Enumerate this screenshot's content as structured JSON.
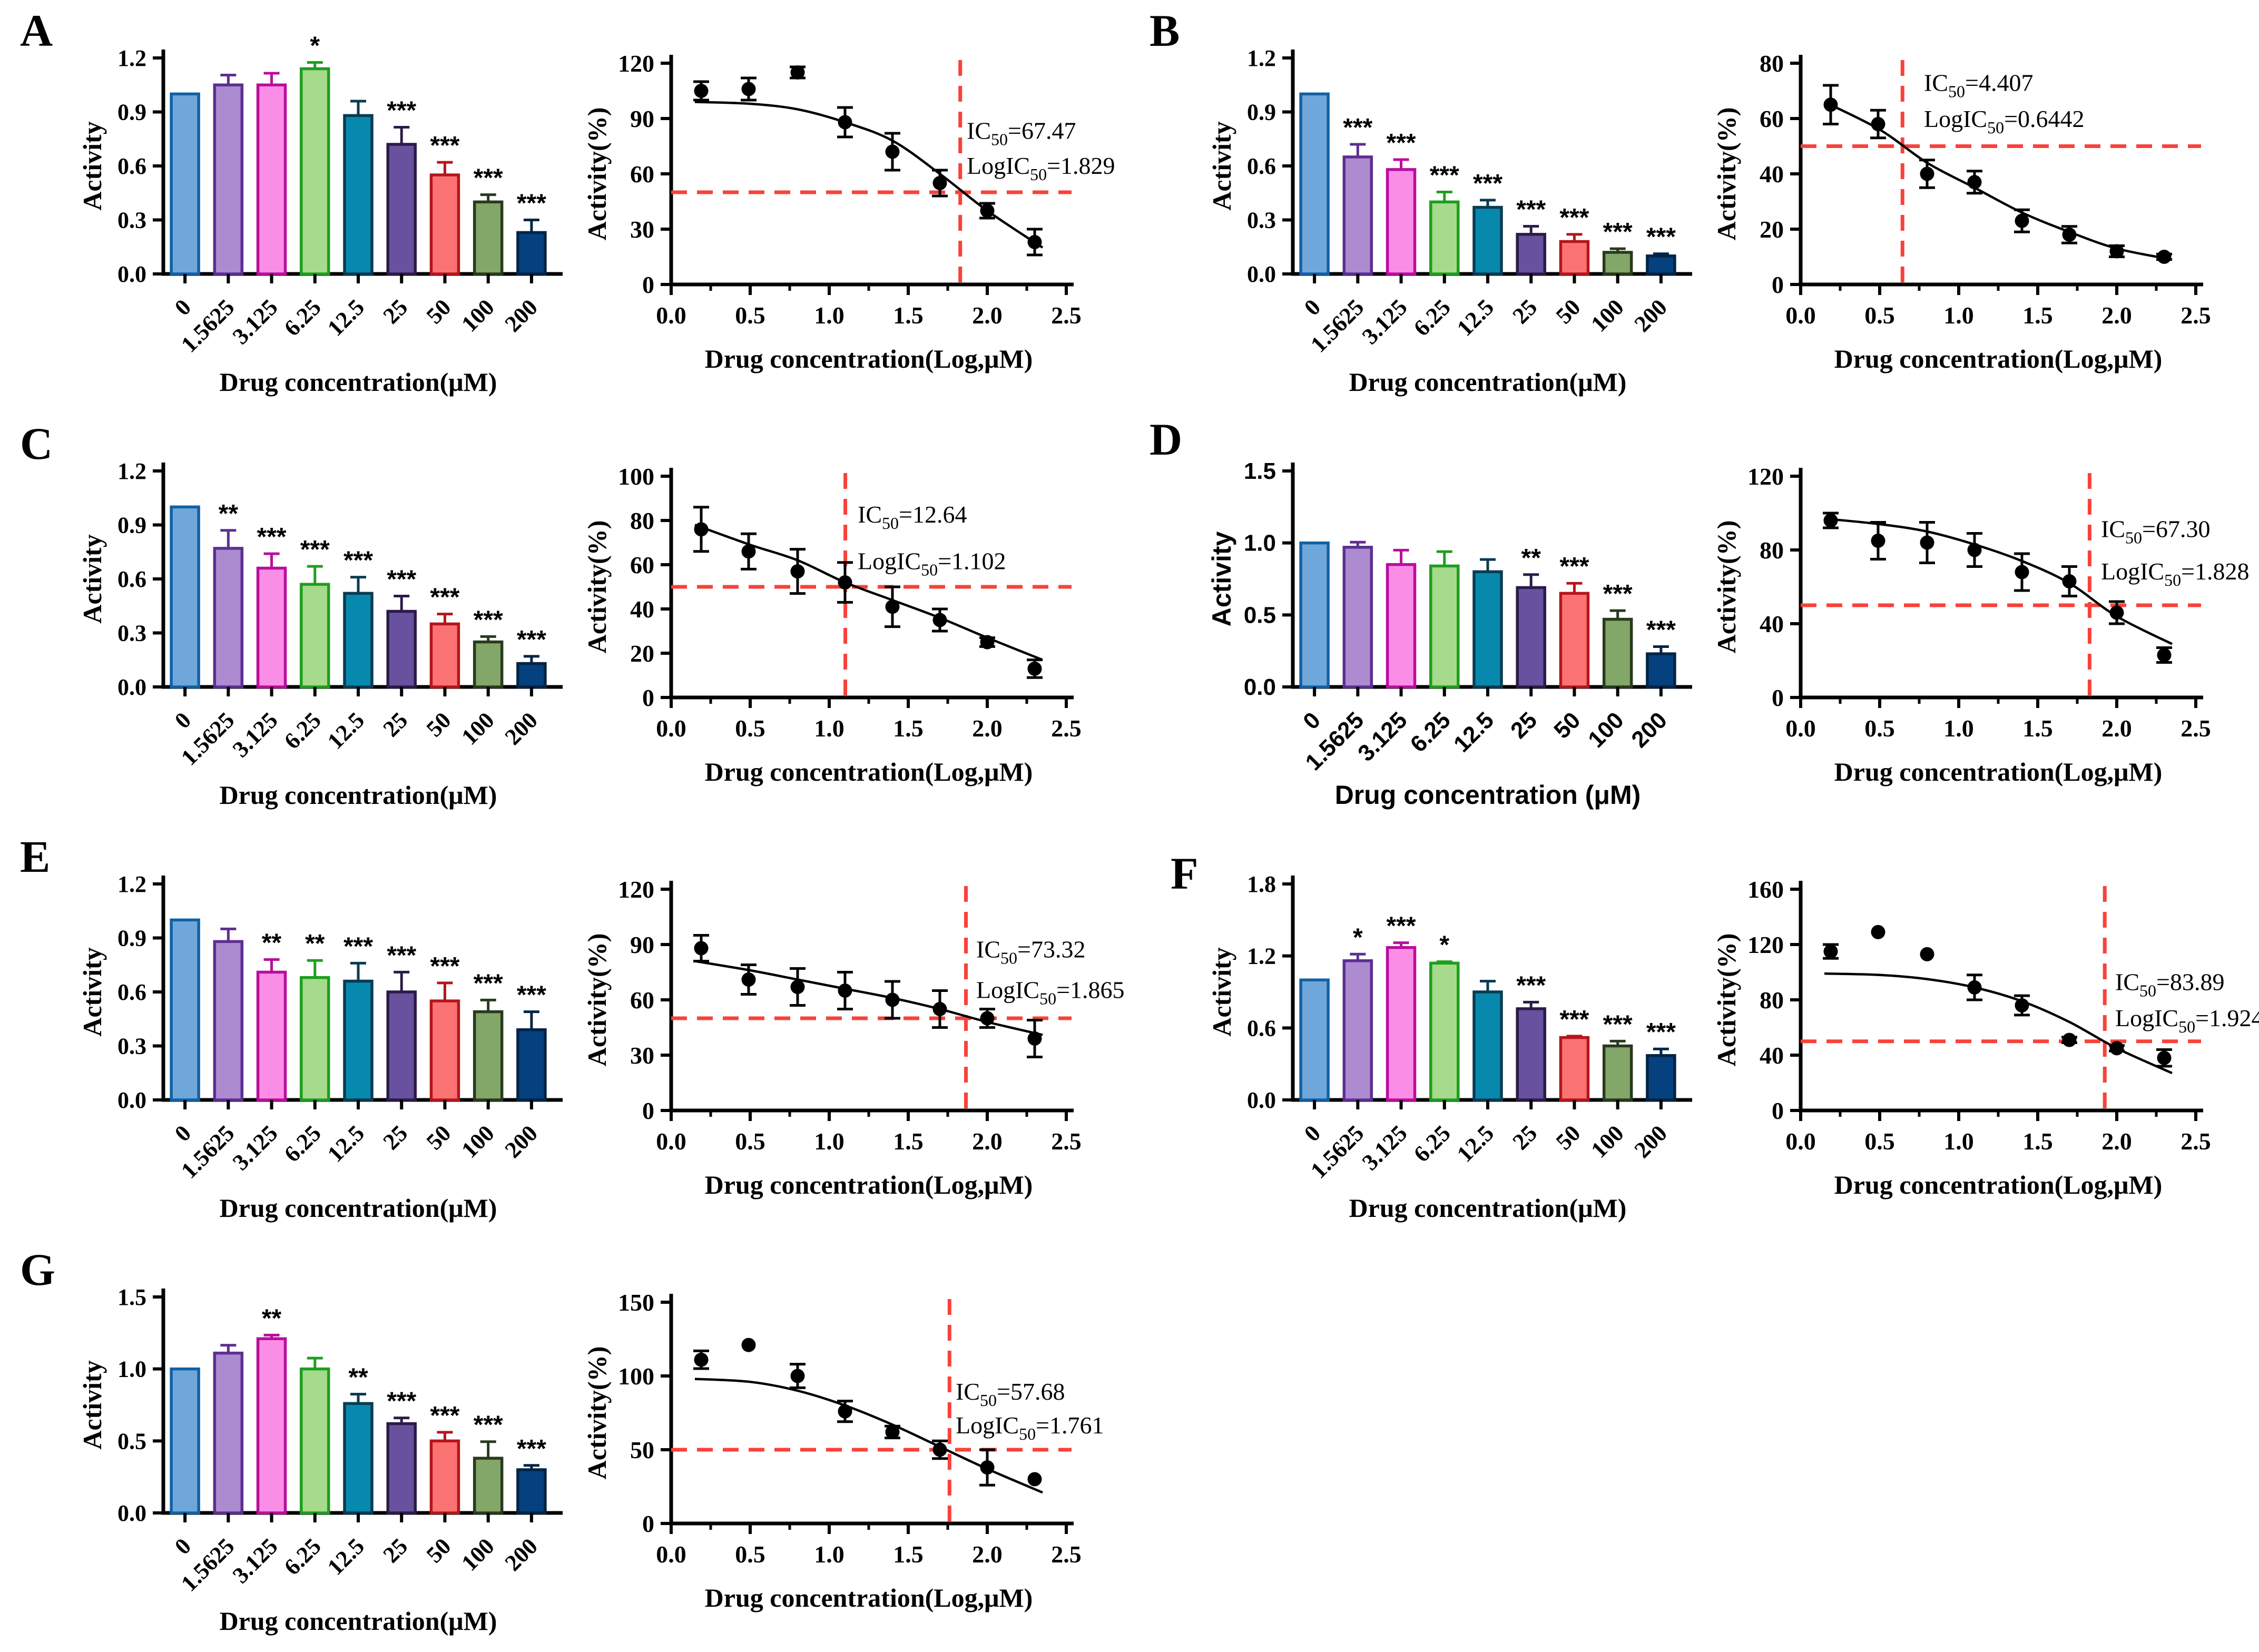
{
  "figure": {
    "panels": [
      "A",
      "B",
      "C",
      "D",
      "E",
      "F",
      "G"
    ]
  },
  "palette": {
    "bar_fills": [
      "#6FA7DA",
      "#AC8BD0",
      "#FA8EE6",
      "#A6DA8C",
      "#0689AD",
      "#68519F",
      "#FA7372",
      "#83A669",
      "#05407F"
    ],
    "bar_borders": [
      "#1261A5",
      "#5D2E92",
      "#BB0D9D",
      "#1E9E1E",
      "#0B3B53",
      "#2B1B48",
      "#B5151C",
      "#283A1E",
      "#032445"
    ],
    "dashed_red": "#F8423A",
    "data_black": "#000000"
  },
  "chart_data": [
    {
      "panel": "A",
      "type": "bar",
      "categories": [
        "0",
        "1.5625",
        "3.125",
        "6.25",
        "12.5",
        "25",
        "50",
        "100",
        "200"
      ],
      "values": [
        1.0,
        1.05,
        1.05,
        1.14,
        0.88,
        0.72,
        0.55,
        0.4,
        0.23
      ],
      "errors": [
        0,
        0.055,
        0.065,
        0.035,
        0.08,
        0.095,
        0.07,
        0.04,
        0.07
      ],
      "sig": [
        "",
        "",
        "",
        "*",
        "",
        "***",
        "***",
        "***",
        "***"
      ],
      "xlabel": "Drug concentration(μM)",
      "ylabel": "Activity",
      "ylim": [
        0,
        1.2
      ],
      "yticks": [
        "0.0",
        "0.3",
        "0.6",
        "0.9",
        "1.2"
      ],
      "label_style": "serif"
    },
    {
      "panel": "A",
      "type": "scatter",
      "x": [
        0.19,
        0.49,
        0.8,
        1.1,
        1.4,
        1.7,
        2.0,
        2.3
      ],
      "y": [
        105,
        106,
        115,
        88,
        72,
        55,
        40,
        23
      ],
      "errors": [
        5,
        6,
        3,
        8,
        10,
        7,
        4,
        7
      ],
      "fit": [
        [
          0.15,
          99
        ],
        [
          0.5,
          98
        ],
        [
          0.8,
          95
        ],
        [
          1.1,
          88
        ],
        [
          1.4,
          78
        ],
        [
          1.7,
          60
        ],
        [
          2.0,
          40
        ],
        [
          2.35,
          20
        ]
      ],
      "xlabel": "Drug concentration(Log,μM)",
      "ylabel": "Activity(%)",
      "xlim": [
        0,
        2.5
      ],
      "xticks": [
        "0.0",
        "0.5",
        "1.0",
        "1.5",
        "2.0",
        "2.5"
      ],
      "ylim": [
        0,
        120
      ],
      "yticks": [
        "0",
        "30",
        "60",
        "90",
        "120"
      ],
      "hline": 50,
      "vline": 1.829,
      "ic50": {
        "prefix": "IC",
        "sub": "50",
        "value": "=67.47"
      },
      "logic50": {
        "prefix": "LogIC",
        "sub": "50",
        "value": "=1.829"
      },
      "anno": {
        "x": 1.87,
        "y1": 79,
        "y2": 60
      }
    },
    {
      "panel": "B",
      "type": "bar",
      "categories": [
        "0",
        "1.5625",
        "3.125",
        "6.25",
        "12.5",
        "25",
        "50",
        "100",
        "200"
      ],
      "values": [
        1.0,
        0.65,
        0.58,
        0.4,
        0.37,
        0.22,
        0.18,
        0.12,
        0.1
      ],
      "errors": [
        0,
        0.07,
        0.055,
        0.055,
        0.04,
        0.045,
        0.04,
        0.02,
        0.012
      ],
      "sig": [
        "",
        "***",
        "***",
        "***",
        "***",
        "***",
        "***",
        "***",
        "***"
      ],
      "xlabel": "Drug concentration(μM)",
      "ylabel": "Activity",
      "ylim": [
        0,
        1.2
      ],
      "yticks": [
        "0.0",
        "0.3",
        "0.6",
        "0.9",
        "1.2"
      ],
      "label_style": "serif"
    },
    {
      "panel": "B",
      "type": "scatter",
      "x": [
        0.19,
        0.49,
        0.8,
        1.1,
        1.4,
        1.7,
        2.0,
        2.3
      ],
      "y": [
        65,
        58,
        40,
        37,
        23,
        18,
        12,
        10
      ],
      "errors": [
        7,
        5,
        5,
        4,
        4,
        3,
        2,
        1
      ],
      "fit": [
        [
          0.15,
          66
        ],
        [
          0.5,
          56
        ],
        [
          0.8,
          44
        ],
        [
          1.1,
          35
        ],
        [
          1.4,
          26
        ],
        [
          1.7,
          19
        ],
        [
          2.0,
          13
        ],
        [
          2.35,
          9
        ]
      ],
      "xlabel": "Drug concentration(Log,μM)",
      "ylabel": "Activity(%)",
      "xlim": [
        0,
        2.5
      ],
      "xticks": [
        "0.0",
        "0.5",
        "1.0",
        "1.5",
        "2.0",
        "2.5"
      ],
      "ylim": [
        0,
        80
      ],
      "yticks": [
        "0",
        "20",
        "40",
        "60",
        "80"
      ],
      "hline": 50,
      "vline": 0.6442,
      "ic50": {
        "prefix": "IC",
        "sub": "50",
        "value": "=4.407"
      },
      "logic50": {
        "prefix": "LogIC",
        "sub": "50",
        "value": "=0.6442"
      },
      "anno": {
        "x": 0.78,
        "y1": 70,
        "y2": 57
      }
    },
    {
      "panel": "C",
      "type": "bar",
      "categories": [
        "0",
        "1.5625",
        "3.125",
        "6.25",
        "12.5",
        "25",
        "50",
        "100",
        "200"
      ],
      "values": [
        1.0,
        0.77,
        0.66,
        0.57,
        0.52,
        0.42,
        0.35,
        0.25,
        0.13
      ],
      "errors": [
        0,
        0.1,
        0.08,
        0.1,
        0.09,
        0.085,
        0.055,
        0.03,
        0.04
      ],
      "sig": [
        "",
        "**",
        "***",
        "***",
        "***",
        "***",
        "***",
        "***",
        "***"
      ],
      "xlabel": "Drug concentration(μM)",
      "ylabel": "Activity",
      "ylim": [
        0,
        1.2
      ],
      "yticks": [
        "0.0",
        "0.3",
        "0.6",
        "0.9",
        "1.2"
      ],
      "label_style": "serif"
    },
    {
      "panel": "C",
      "type": "scatter",
      "x": [
        0.19,
        0.49,
        0.8,
        1.1,
        1.4,
        1.7,
        2.0,
        2.3
      ],
      "y": [
        76,
        66,
        57,
        52,
        41,
        35,
        25,
        13
      ],
      "errors": [
        10,
        8,
        10,
        9,
        9,
        5,
        2,
        4
      ],
      "fit": [
        [
          0.15,
          78
        ],
        [
          0.5,
          69
        ],
        [
          0.8,
          62
        ],
        [
          1.1,
          52
        ],
        [
          1.4,
          44
        ],
        [
          1.7,
          36
        ],
        [
          2.0,
          27
        ],
        [
          2.35,
          17
        ]
      ],
      "xlabel": "Drug concentration(Log,μM)",
      "ylabel": "Activity(%)",
      "xlim": [
        0,
        2.5
      ],
      "xticks": [
        "0.0",
        "0.5",
        "1.0",
        "1.5",
        "2.0",
        "2.5"
      ],
      "ylim": [
        0,
        100
      ],
      "yticks": [
        "0",
        "20",
        "40",
        "60",
        "80",
        "100"
      ],
      "hline": 50,
      "vline": 1.102,
      "ic50": {
        "prefix": "IC",
        "sub": "50",
        "value": "=12.64"
      },
      "logic50": {
        "prefix": "LogIC",
        "sub": "50",
        "value": "=1.102"
      },
      "anno": {
        "x": 1.18,
        "y1": 79,
        "y2": 58
      }
    },
    {
      "panel": "D",
      "type": "bar",
      "categories": [
        "0",
        "1.5625",
        "3.125",
        "6.25",
        "12.5",
        "25",
        "50",
        "100",
        "200"
      ],
      "values": [
        1.0,
        0.97,
        0.85,
        0.84,
        0.8,
        0.69,
        0.65,
        0.47,
        0.23
      ],
      "errors": [
        0,
        0.035,
        0.1,
        0.1,
        0.085,
        0.09,
        0.07,
        0.06,
        0.05
      ],
      "sig": [
        "",
        "",
        "",
        "",
        "",
        "**",
        "***",
        "***",
        "***"
      ],
      "xlabel": "Drug concentration (μM)",
      "ylabel": "Activity",
      "ylim": [
        0,
        1.5
      ],
      "yticks": [
        "0.0",
        "0.5",
        "1.0",
        "1.5"
      ],
      "label_style": "sans"
    },
    {
      "panel": "D",
      "type": "scatter",
      "x": [
        0.19,
        0.49,
        0.8,
        1.1,
        1.4,
        1.7,
        2.0,
        2.3
      ],
      "y": [
        96,
        85,
        84,
        80,
        68,
        63,
        46,
        23
      ],
      "errors": [
        4,
        10,
        11,
        9,
        10,
        8,
        6,
        4
      ],
      "fit": [
        [
          0.15,
          97
        ],
        [
          0.5,
          94
        ],
        [
          0.8,
          90
        ],
        [
          1.1,
          83
        ],
        [
          1.4,
          74
        ],
        [
          1.7,
          62
        ],
        [
          2.0,
          44
        ],
        [
          2.35,
          29
        ]
      ],
      "xlabel": "Drug concentration(Log,μM)",
      "ylabel": "Activity(%)",
      "xlim": [
        0,
        2.5
      ],
      "xticks": [
        "0.0",
        "0.5",
        "1.0",
        "1.5",
        "2.0",
        "2.5"
      ],
      "ylim": [
        0,
        120
      ],
      "yticks": [
        "0",
        "40",
        "80",
        "120"
      ],
      "hline": 50,
      "vline": 1.828,
      "ic50": {
        "prefix": "IC",
        "sub": "50",
        "value": "=67.30"
      },
      "logic50": {
        "prefix": "LogIC",
        "sub": "50",
        "value": "=1.828"
      },
      "anno": {
        "x": 1.9,
        "y1": 87,
        "y2": 64
      }
    },
    {
      "panel": "E",
      "type": "bar",
      "categories": [
        "0",
        "1.5625",
        "3.125",
        "6.25",
        "12.5",
        "25",
        "50",
        "100",
        "200"
      ],
      "values": [
        1.0,
        0.88,
        0.71,
        0.68,
        0.66,
        0.6,
        0.55,
        0.49,
        0.39
      ],
      "errors": [
        0,
        0.07,
        0.07,
        0.095,
        0.1,
        0.11,
        0.1,
        0.065,
        0.1
      ],
      "sig": [
        "",
        "",
        "**",
        "**",
        "***",
        "***",
        "***",
        "***",
        "***"
      ],
      "xlabel": "Drug concentration(μM)",
      "ylabel": "Activity",
      "ylim": [
        0,
        1.2
      ],
      "yticks": [
        "0.0",
        "0.3",
        "0.6",
        "0.9",
        "1.2"
      ],
      "label_style": "serif"
    },
    {
      "panel": "E",
      "type": "scatter",
      "x": [
        0.19,
        0.49,
        0.8,
        1.1,
        1.4,
        1.7,
        2.0,
        2.3
      ],
      "y": [
        88,
        71,
        67,
        65,
        60,
        55,
        50,
        39
      ],
      "errors": [
        7,
        8,
        10,
        10,
        10,
        10,
        5,
        10
      ],
      "fit": [
        [
          0.15,
          81
        ],
        [
          0.5,
          76
        ],
        [
          0.8,
          71
        ],
        [
          1.1,
          66
        ],
        [
          1.4,
          61
        ],
        [
          1.7,
          55
        ],
        [
          2.0,
          48
        ],
        [
          2.35,
          41
        ]
      ],
      "xlabel": "Drug concentration(Log,μM)",
      "ylabel": "Activity(%)",
      "xlim": [
        0,
        2.5
      ],
      "xticks": [
        "0.0",
        "0.5",
        "1.0",
        "1.5",
        "2.0",
        "2.5"
      ],
      "ylim": [
        0,
        120
      ],
      "yticks": [
        "0",
        "30",
        "60",
        "90",
        "120"
      ],
      "hline": 50,
      "vline": 1.865,
      "ic50": {
        "prefix": "IC",
        "sub": "50",
        "value": "=73.32"
      },
      "logic50": {
        "prefix": "LogIC",
        "sub": "50",
        "value": "=1.865"
      },
      "anno": {
        "x": 1.93,
        "y1": 83,
        "y2": 61
      }
    },
    {
      "panel": "F",
      "type": "bar",
      "categories": [
        "0",
        "1.5625",
        "3.125",
        "6.25",
        "12.5",
        "25",
        "50",
        "100",
        "200"
      ],
      "values": [
        1.0,
        1.16,
        1.27,
        1.14,
        0.9,
        0.76,
        0.52,
        0.45,
        0.37
      ],
      "errors": [
        0,
        0.055,
        0.04,
        0.012,
        0.09,
        0.055,
        0.012,
        0.04,
        0.055
      ],
      "sig": [
        "",
        "*",
        "***",
        "*",
        "",
        "***",
        "***",
        "***",
        "***"
      ],
      "xlabel": "Drug concentration(μM)",
      "ylabel": "Activity",
      "ylim": [
        0,
        1.8
      ],
      "yticks": [
        "0.0",
        "0.6",
        "1.2",
        "1.8"
      ],
      "label_style": "serif"
    },
    {
      "panel": "F",
      "type": "scatter",
      "x": [
        0.19,
        0.49,
        0.8,
        1.1,
        1.4,
        1.7,
        2.0,
        2.3
      ],
      "y": [
        115,
        129,
        113,
        89,
        76,
        51,
        45,
        38
      ],
      "errors": [
        5,
        0,
        0,
        9,
        7,
        2,
        2,
        6
      ],
      "fit": [
        [
          0.15,
          99
        ],
        [
          0.5,
          98
        ],
        [
          0.8,
          95
        ],
        [
          1.1,
          89
        ],
        [
          1.4,
          79
        ],
        [
          1.7,
          64
        ],
        [
          2.0,
          45
        ],
        [
          2.35,
          27
        ]
      ],
      "xlabel": "Drug concentration(Log,μM)",
      "ylabel": "Activity(%)",
      "xlim": [
        0,
        2.5
      ],
      "xticks": [
        "0.0",
        "0.5",
        "1.0",
        "1.5",
        "2.0",
        "2.5"
      ],
      "ylim": [
        0,
        160
      ],
      "yticks": [
        "0",
        "40",
        "80",
        "120",
        "160"
      ],
      "hline": 50,
      "vline": 1.924,
      "ic50": {
        "prefix": "IC",
        "sub": "50",
        "value": "=83.89"
      },
      "logic50": {
        "prefix": "LogIC",
        "sub": "50",
        "value": "=1.924"
      },
      "anno": {
        "x": 1.99,
        "y1": 87,
        "y2": 61
      }
    },
    {
      "panel": "G",
      "type": "bar",
      "categories": [
        "0",
        "1.5625",
        "3.125",
        "6.25",
        "12.5",
        "25",
        "50",
        "100",
        "200"
      ],
      "values": [
        1.0,
        1.11,
        1.21,
        1.0,
        0.76,
        0.62,
        0.5,
        0.38,
        0.3
      ],
      "errors": [
        0,
        0.055,
        0.025,
        0.075,
        0.065,
        0.04,
        0.06,
        0.115,
        0.03
      ],
      "sig": [
        "",
        "",
        "**",
        "",
        "**",
        "***",
        "***",
        "***",
        "***"
      ],
      "xlabel": "Drug concentration(μM)",
      "ylabel": "Activity",
      "ylim": [
        0,
        1.5
      ],
      "yticks": [
        "0.0",
        "0.5",
        "1.0",
        "1.5"
      ],
      "label_style": "serif"
    },
    {
      "panel": "G",
      "type": "scatter",
      "x": [
        0.19,
        0.49,
        0.8,
        1.1,
        1.4,
        1.7,
        2.0,
        2.3
      ],
      "y": [
        111,
        121,
        100,
        76,
        62,
        50,
        38,
        30
      ],
      "errors": [
        6,
        0,
        8,
        7,
        4,
        6,
        12,
        0
      ],
      "fit": [
        [
          0.15,
          98
        ],
        [
          0.5,
          96
        ],
        [
          0.8,
          90
        ],
        [
          1.1,
          80
        ],
        [
          1.4,
          67
        ],
        [
          1.7,
          52
        ],
        [
          2.0,
          37
        ],
        [
          2.35,
          21
        ]
      ],
      "xlabel": "Drug concentration(Log,μM)",
      "ylabel": "Activity(%)",
      "xlim": [
        0,
        2.5
      ],
      "xticks": [
        "0.0",
        "0.5",
        "1.0",
        "1.5",
        "2.0",
        "2.5"
      ],
      "ylim": [
        0,
        150
      ],
      "yticks": [
        "0",
        "50",
        "100",
        "150"
      ],
      "hline": 50,
      "vline": 1.761,
      "ic50": {
        "prefix": "IC",
        "sub": "50",
        "value": "=57.68"
      },
      "logic50": {
        "prefix": "LogIC",
        "sub": "50",
        "value": "=1.761"
      },
      "anno": {
        "x": 1.8,
        "y1": 84,
        "y2": 61
      }
    }
  ]
}
